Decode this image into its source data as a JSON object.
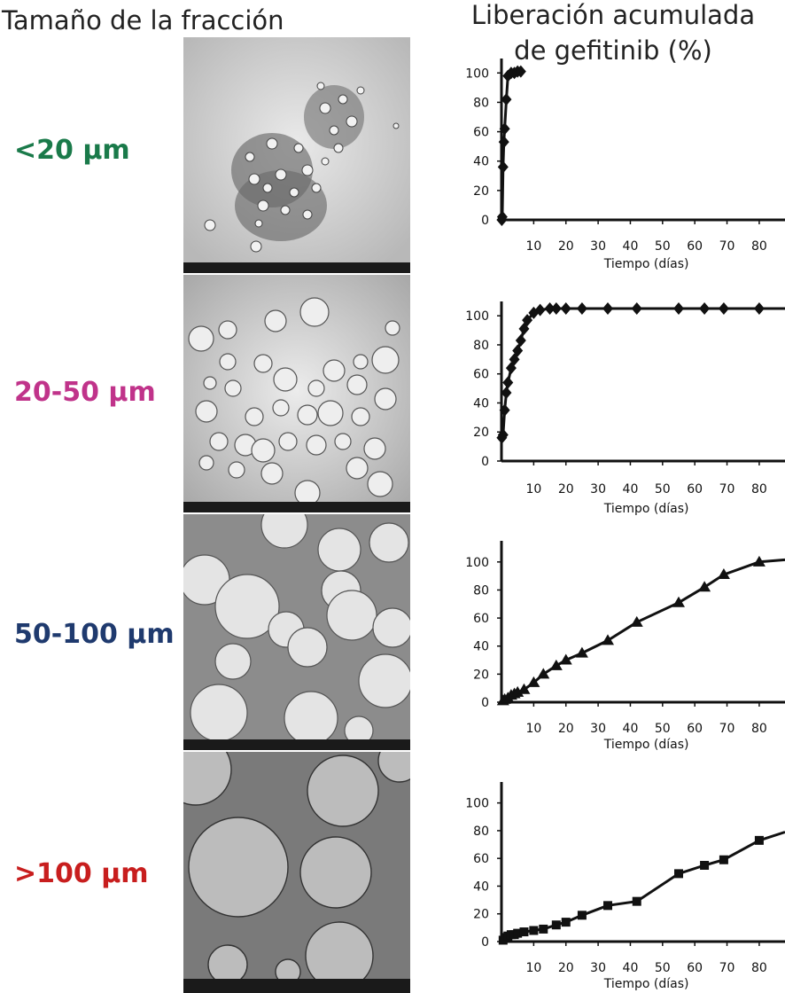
{
  "header": {
    "left_title": "Tamaño de la fracción",
    "right_title_line1": "Liberación acumulada",
    "right_title_line2": "de gefitinib (%)"
  },
  "fractions": [
    {
      "label": "<20 µm",
      "color": "#1a7a4a"
    },
    {
      "label": "20-50 µm",
      "color": "#c0338a"
    },
    {
      "label": "50-100 µm",
      "color": "#1f3a6e"
    },
    {
      "label": ">100 µm",
      "color": "#c81e1e"
    }
  ],
  "chart_data": [
    {
      "type": "line",
      "xlabel": "Tiempo (días)",
      "xlim": [
        0,
        88
      ],
      "ylim": [
        0,
        105
      ],
      "xticks": [
        "10",
        "20",
        "30",
        "40",
        "50",
        "60",
        "70",
        "80"
      ],
      "yticks": [
        "0",
        "20",
        "40",
        "60",
        "80",
        "100"
      ],
      "marker": "diamond",
      "x": [
        0.1,
        0.25,
        0.5,
        0.75,
        1,
        1.5,
        2,
        3,
        4,
        5,
        6
      ],
      "y": [
        0,
        2,
        36,
        53,
        62,
        82,
        98,
        100,
        100,
        101,
        101
      ]
    },
    {
      "type": "line",
      "xlabel": "Tiempo (días)",
      "xlim": [
        0,
        88
      ],
      "ylim": [
        0,
        105
      ],
      "xticks": [
        "10",
        "20",
        "30",
        "40",
        "50",
        "60",
        "70",
        "80"
      ],
      "yticks": [
        "0",
        "20",
        "40",
        "60",
        "80",
        "100"
      ],
      "marker": "diamond",
      "x": [
        0.1,
        0.5,
        1,
        1.5,
        2,
        3,
        4,
        5,
        6,
        7,
        8,
        10,
        12,
        15,
        17,
        20,
        25,
        33,
        42,
        55,
        63,
        69,
        80
      ],
      "y": [
        16,
        18,
        35,
        47,
        54,
        64,
        70,
        76,
        83,
        91,
        97,
        102,
        104,
        105,
        105,
        105,
        105,
        105,
        105,
        105,
        105,
        105,
        105
      ]
    },
    {
      "type": "line",
      "xlabel": "Tiempo (días)",
      "xlim": [
        0,
        88
      ],
      "ylim": [
        0,
        110
      ],
      "xticks": [
        "10",
        "20",
        "30",
        "40",
        "50",
        "60",
        "70",
        "80"
      ],
      "yticks": [
        "0",
        "20",
        "40",
        "60",
        "80",
        "100"
      ],
      "marker": "triangle",
      "x": [
        0.5,
        1,
        2,
        3,
        4,
        5,
        7,
        10,
        13,
        17,
        20,
        25,
        33,
        42,
        55,
        63,
        69,
        80
      ],
      "y": [
        1,
        2,
        3,
        5,
        6,
        7,
        9,
        14,
        20,
        26,
        30,
        35,
        44,
        57,
        71,
        82,
        91,
        100
      ]
    },
    {
      "type": "line",
      "xlabel": "Tiempo (días)",
      "xlim": [
        0,
        88
      ],
      "ylim": [
        0,
        110
      ],
      "xticks": [
        "10",
        "20",
        "30",
        "40",
        "50",
        "60",
        "70",
        "80"
      ],
      "yticks": [
        "0",
        "20",
        "40",
        "60",
        "80",
        "100"
      ],
      "marker": "square",
      "x": [
        0.5,
        1,
        2,
        3,
        4,
        5,
        7,
        10,
        13,
        17,
        20,
        25,
        33,
        42,
        55,
        63,
        69,
        80
      ],
      "y": [
        1,
        3,
        4,
        5,
        5,
        6,
        7,
        8,
        9,
        12,
        14,
        19,
        26,
        29,
        49,
        55,
        59,
        73
      ]
    }
  ]
}
